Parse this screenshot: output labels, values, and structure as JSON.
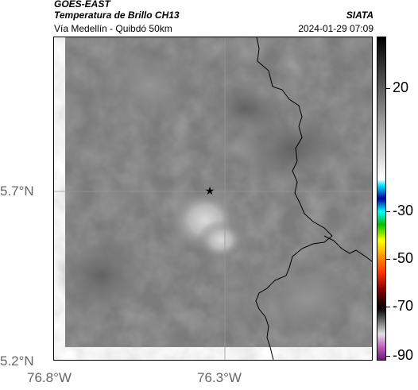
{
  "header": {
    "satellite": "GOES-EAST",
    "product": "Temperatura de Brillo CH13",
    "region": "Vía Medellín - Quibdó 50km",
    "agency": "SIATA",
    "datetime": "2024-01-29 07:09"
  },
  "map": {
    "lat_labels": [
      "5.7°N",
      "5.2°N"
    ],
    "lon_labels": [
      "76.8°W",
      "76.3°W"
    ],
    "marker": "star-icon",
    "colors": {
      "background_gray": "#7d7d7d",
      "bright_cloud": "#d0d0d0",
      "border_line": "#000000",
      "grid_line": "#999999"
    }
  },
  "colorbar": {
    "tick_labels": [
      "20",
      "-30",
      "-50",
      "-70",
      "-90"
    ],
    "colors": [
      "#6a1b6e",
      "#c060c0",
      "#e0e0e0",
      "#000000",
      "#8b0000",
      "#ff3000",
      "#ff8000",
      "#ffff00",
      "#00c000",
      "#00ffff",
      "#0000a0",
      "#00e0ff",
      "#ffffff",
      "#bdbdbd",
      "#000000"
    ]
  }
}
